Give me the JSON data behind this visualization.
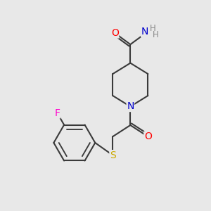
{
  "background_color": "#e8e8e8",
  "bond_color": "#3a3a3a",
  "line_width": 1.5,
  "atom_colors": {
    "O": "#ff0000",
    "N": "#0000cc",
    "S": "#ccaa00",
    "F": "#ff00cc",
    "C": "#3a3a3a",
    "H": "#888888"
  },
  "font_size_atoms": 10,
  "font_size_H": 9
}
